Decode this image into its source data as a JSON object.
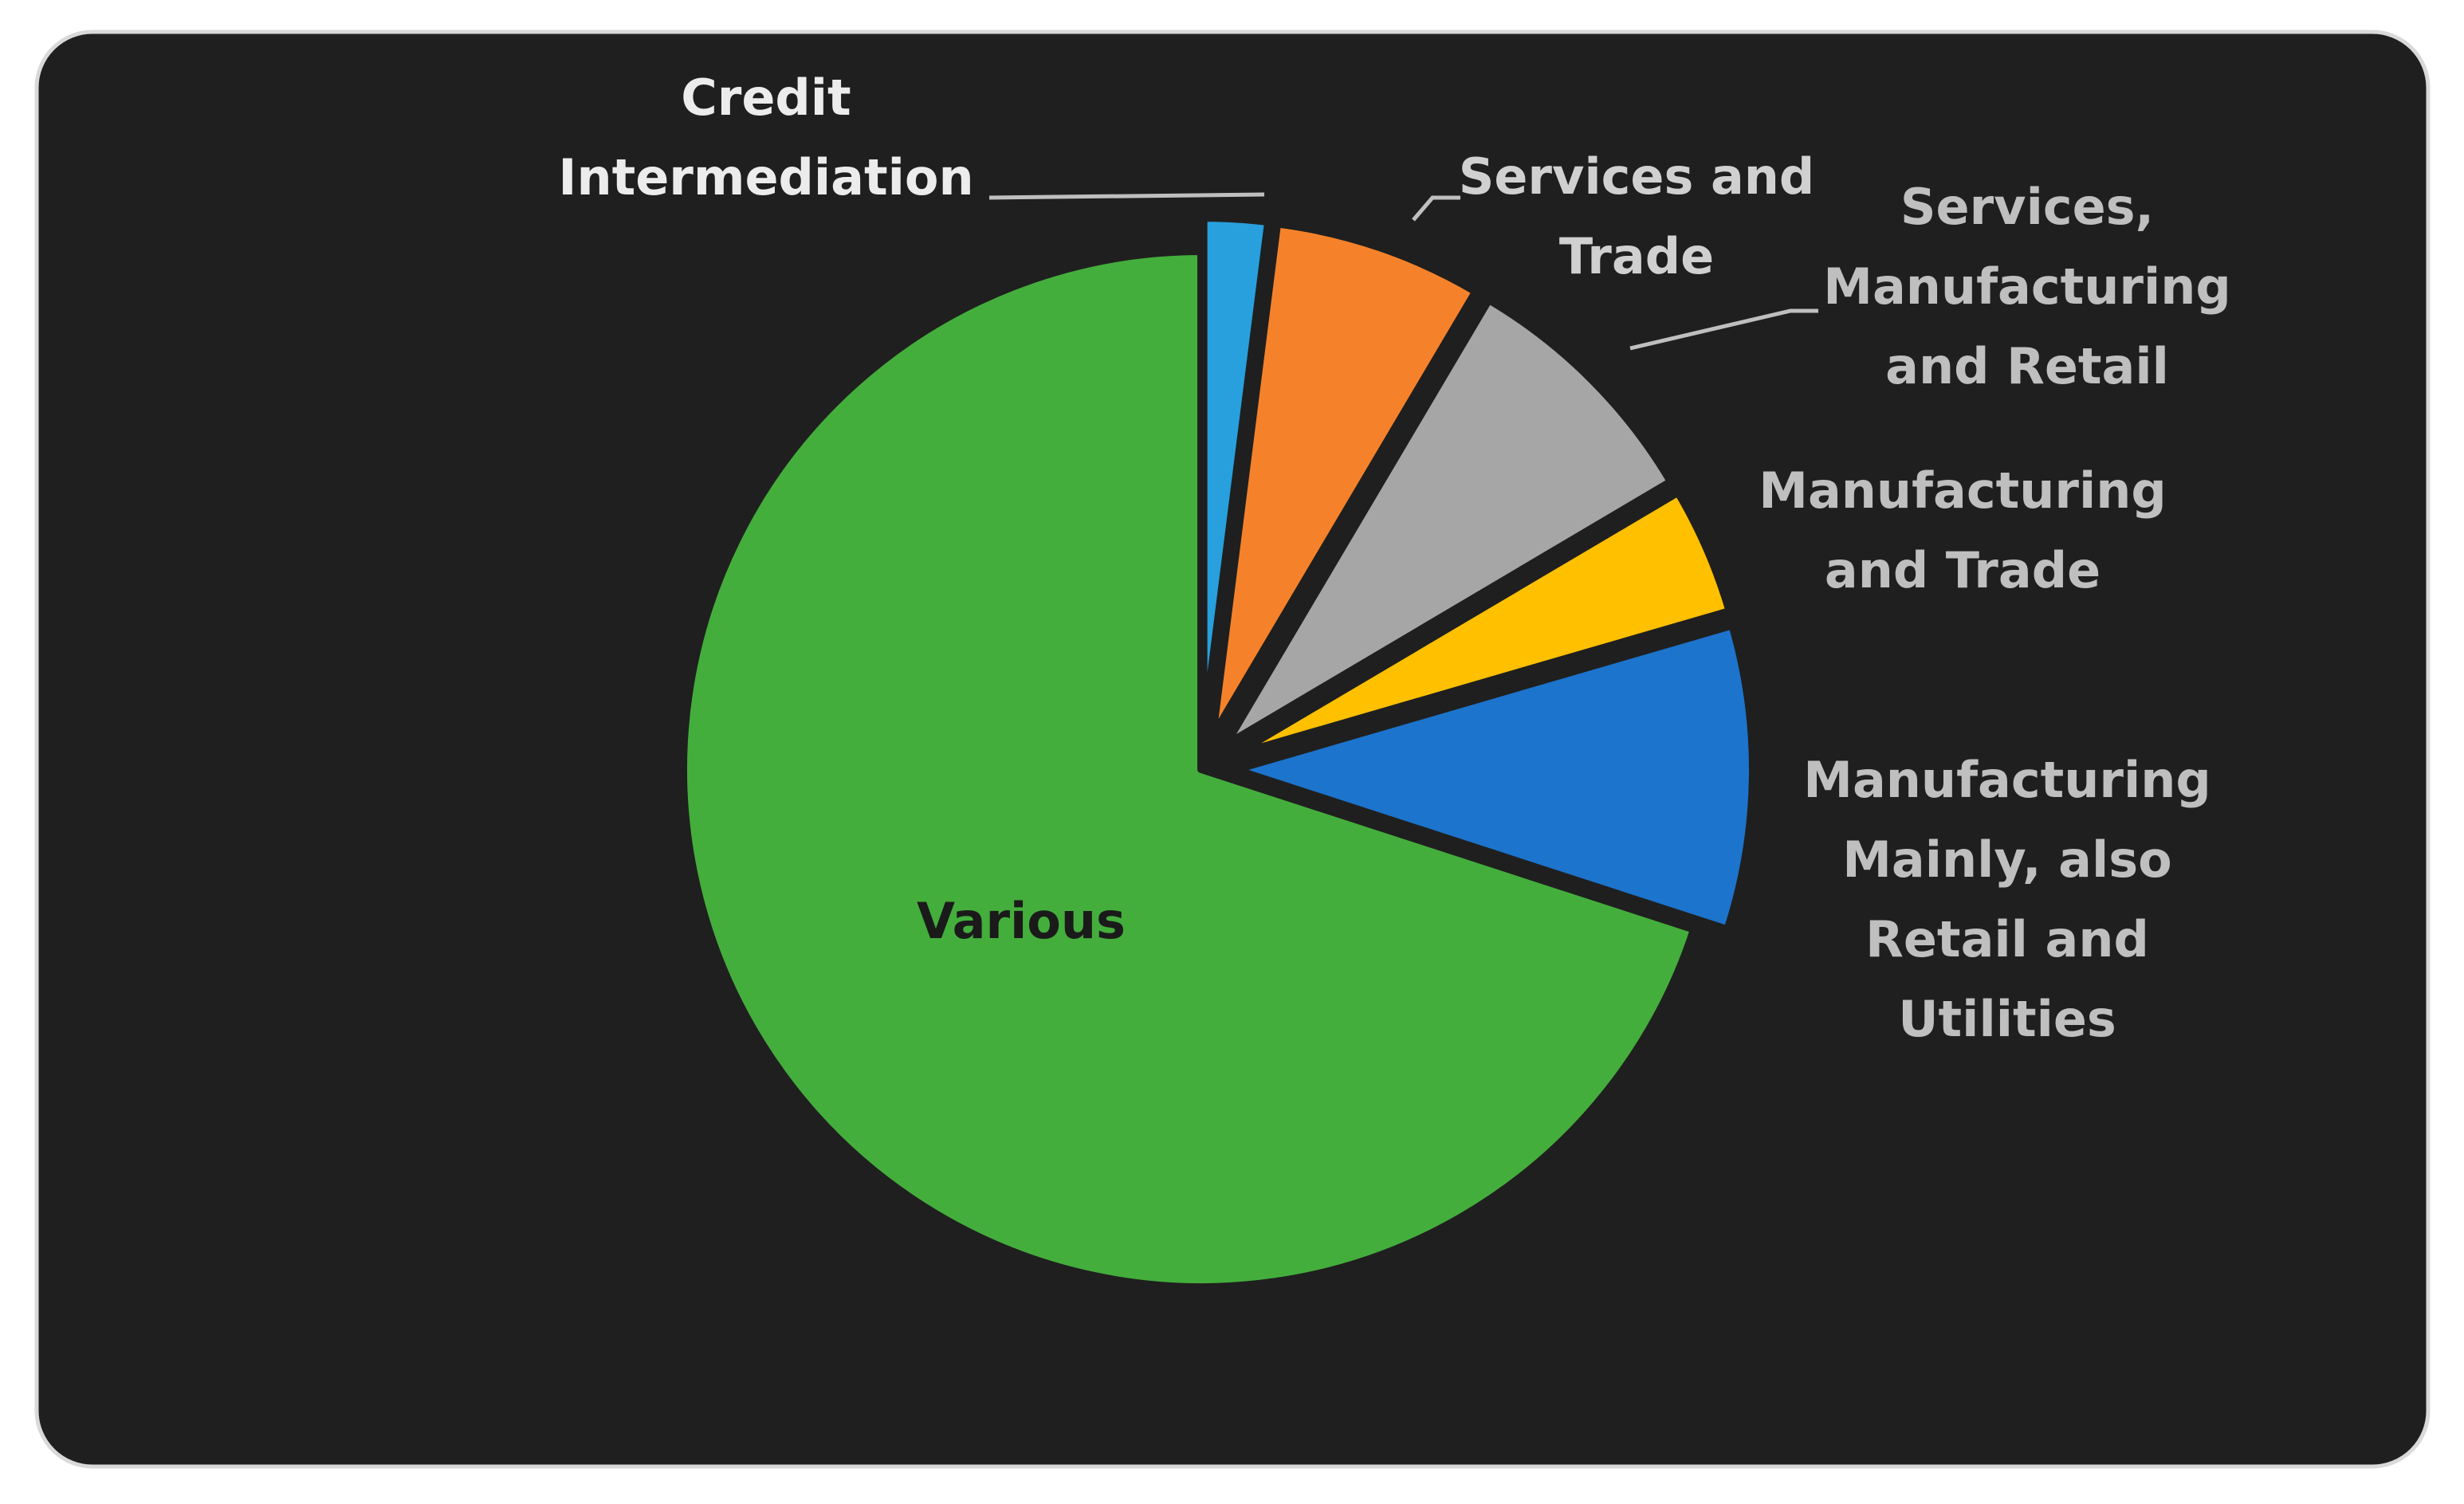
{
  "chart_data": {
    "type": "pie",
    "categories": [
      "Credit Intermediation",
      "Services and Trade",
      "Services, Manufacturing and Retail",
      "Manufacturing and Trade",
      "Manufacturing Mainly, also Retail and Utilities",
      "Various"
    ],
    "values": [
      2,
      6.5,
      8,
      4,
      9.5,
      70
    ],
    "colors": [
      "#27a0dd",
      "#f5822a",
      "#a6a6a6",
      "#ffc000",
      "#1c74cc",
      "#44ae3c"
    ],
    "exploded": [
      true,
      true,
      true,
      true,
      true,
      false
    ]
  }
}
